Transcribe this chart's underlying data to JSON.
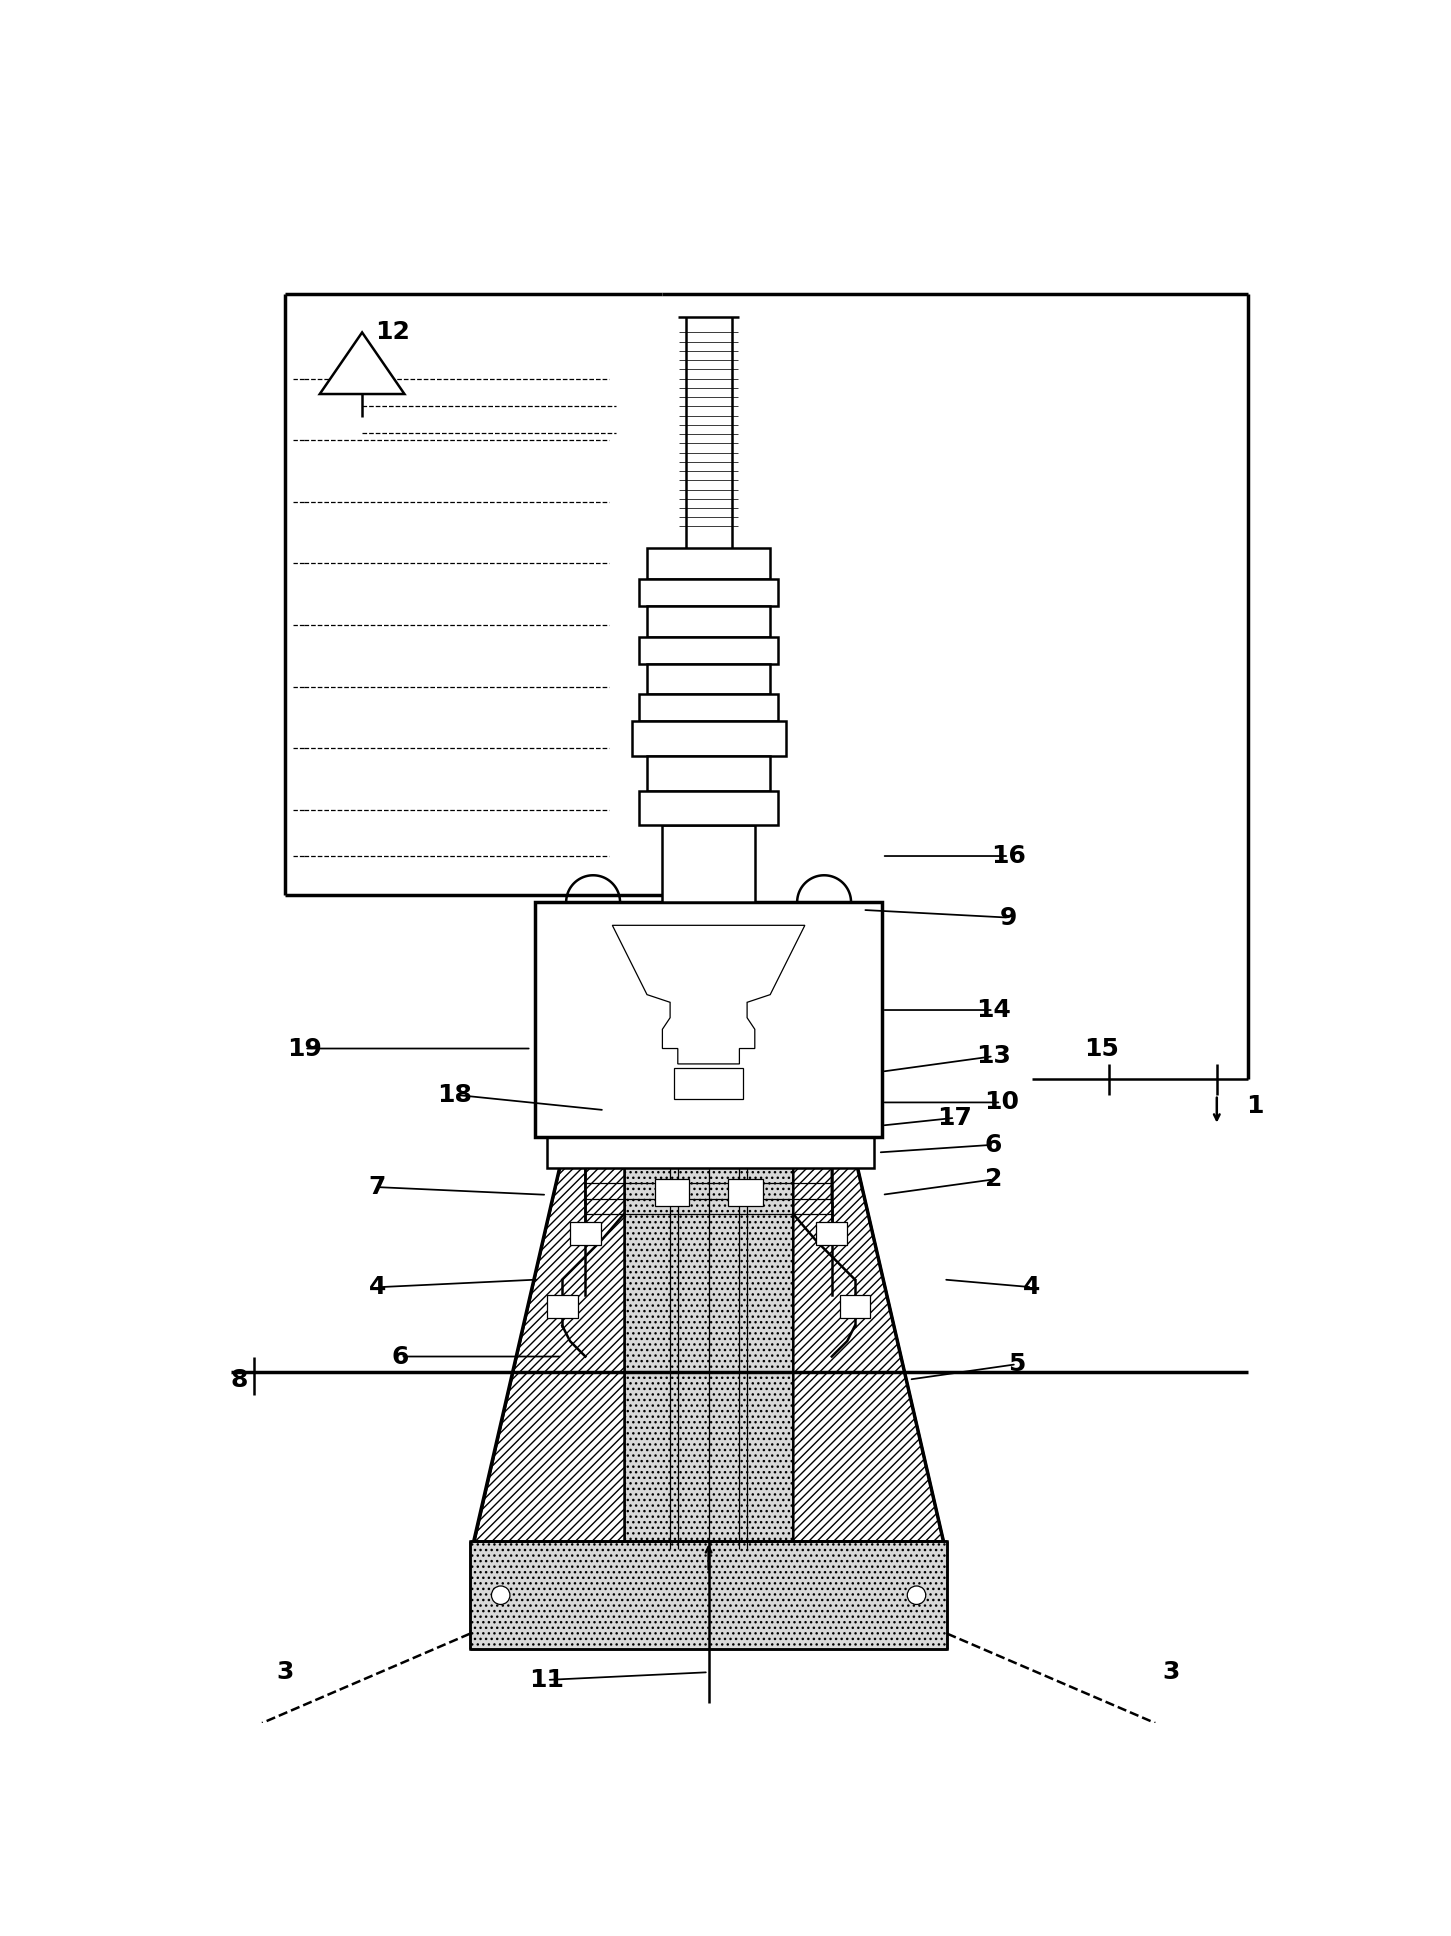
{
  "bg_color": "#ffffff",
  "line_color": "#000000",
  "figsize": [
    14.51,
    19.36
  ],
  "dpi": 100,
  "lw_main": 1.8,
  "lw_thin": 0.9,
  "lw_thick": 2.5,
  "font_size": 18
}
